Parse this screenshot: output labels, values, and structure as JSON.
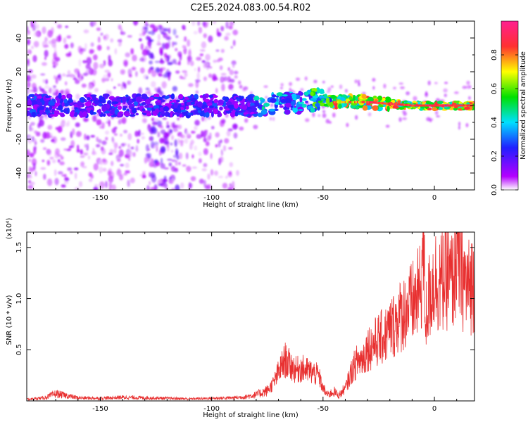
{
  "title": "C2E5.2024.083.00.54.R02",
  "colorbar": {
    "label": "Normalized spectral amplitude",
    "ticks": [
      "0.0",
      "0.2",
      "0.4",
      "0.6",
      "0.8"
    ],
    "tick_values": [
      0.0,
      0.2,
      0.4,
      0.6,
      0.8
    ],
    "range": [
      0.0,
      1.0
    ],
    "colormap": [
      "#ffffff",
      "#b400ff",
      "#2020ff",
      "#00e0ff",
      "#00e000",
      "#ffff00",
      "#ff3030",
      "#ff2090"
    ]
  },
  "chart_data": [
    {
      "type": "heatmap",
      "title": "",
      "xlabel": "Height of straight line (km)",
      "ylabel": "Frequency (Hz)",
      "xlim": [
        -183,
        18
      ],
      "ylim": [
        -50,
        50
      ],
      "xticks": [
        -150,
        -100,
        -50,
        0
      ],
      "yticks": [
        -40,
        -20,
        0,
        20,
        40
      ],
      "xtick_labels": [
        "-150",
        "-100",
        "-50",
        "0"
      ],
      "ytick_labels": [
        "-40",
        "-20",
        "0",
        "20",
        "40"
      ],
      "ridge": {
        "description_points_x": [
          -180,
          -150,
          -100,
          -80,
          -60,
          -50,
          -45,
          -30,
          -20,
          -10,
          0,
          17
        ],
        "center_frequency": [
          0,
          0,
          0,
          0,
          2,
          4,
          2,
          2,
          1,
          0,
          0,
          0
        ]
      }
    },
    {
      "type": "line",
      "title": "",
      "xlabel": "Height of straight line (km)",
      "ylabel": "SNR (10 * v/v)",
      "y_multiplier": "(x10⁴)",
      "xlim": [
        -183,
        18
      ],
      "ylim": [
        0,
        16500
      ],
      "xticks": [
        -150,
        -100,
        -50,
        0
      ],
      "yticks": [
        5000,
        10000,
        15000
      ],
      "xtick_labels": [
        "-150",
        "-100",
        "-50",
        "0"
      ],
      "ytick_labels": [
        "0.5",
        "1.0",
        "1.5"
      ],
      "series": [
        {
          "color": "#e83030",
          "x": [
            -183,
            -175,
            -170,
            -165,
            -160,
            -150,
            -140,
            -130,
            -120,
            -110,
            -100,
            -90,
            -85,
            -80,
            -75,
            -72,
            -70,
            -67,
            -65,
            -62,
            -60,
            -55,
            -52,
            -50,
            -48,
            -45,
            -43,
            -40,
            -37,
            -35,
            -32,
            -30,
            -28,
            -25,
            -22,
            -20,
            -17,
            -15,
            -12,
            -10,
            -8,
            -6,
            -5,
            -4,
            -2,
            0,
            3,
            5,
            8,
            10,
            12,
            15,
            18
          ],
          "values": [
            150,
            300,
            700,
            500,
            300,
            250,
            350,
            300,
            250,
            200,
            250,
            300,
            400,
            600,
            1000,
            1800,
            2800,
            4000,
            3500,
            3000,
            3200,
            2800,
            2500,
            1200,
            600,
            900,
            500,
            1200,
            3000,
            3800,
            4200,
            5200,
            5400,
            6000,
            6400,
            7000,
            7800,
            8400,
            9000,
            9500,
            10000,
            11000,
            16000,
            8000,
            10500,
            12000,
            11500,
            12500,
            11500,
            14500,
            12500,
            11000,
            12000
          ]
        }
      ]
    }
  ]
}
